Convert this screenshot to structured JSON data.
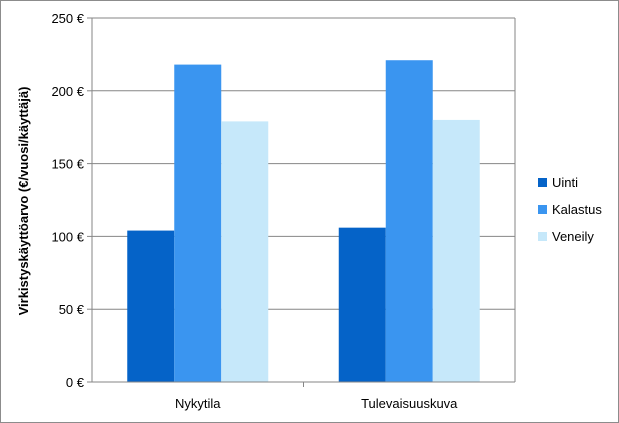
{
  "chart_data": {
    "type": "bar",
    "title": "",
    "xlabel": "",
    "ylabel": "Virkistyskäyttöarvo (€/vuosi/käyttäjä)",
    "categories": [
      "Nykytila",
      "Tulevaisuuskuva"
    ],
    "series": [
      {
        "name": "Uinti",
        "values": [
          104,
          106
        ],
        "color": "#0563c8"
      },
      {
        "name": "Kalastus",
        "values": [
          218,
          221
        ],
        "color": "#3a95f0"
      },
      {
        "name": "Veneily",
        "values": [
          179,
          180
        ],
        "color": "#c6e8fa"
      }
    ],
    "ylim": [
      0,
      250
    ],
    "yticks": [
      0,
      50,
      100,
      150,
      200,
      250
    ],
    "ytick_labels": [
      "0 €",
      "50 €",
      "100 €",
      "150 €",
      "200 €",
      "250 €"
    ],
    "grid": true,
    "legend_position": "right"
  }
}
